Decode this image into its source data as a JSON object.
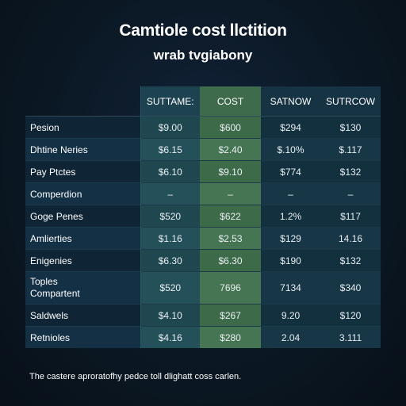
{
  "title": "Camtiole cost llctition",
  "subtitle": "wrab tvgiabony",
  "table": {
    "headers": [
      "",
      "SUTTAME:",
      "COST",
      "SATNOW",
      "SUTRCOW"
    ],
    "rows": [
      {
        "label": "Pesion",
        "values": [
          "$9.00",
          "$600",
          "$294",
          "$130"
        ]
      },
      {
        "label": "Dhtine Neries",
        "values": [
          "$6.15",
          "$2.40",
          "$.10%",
          "$.117"
        ]
      },
      {
        "label": "Pay Ptctes",
        "values": [
          "$6.10",
          "$9.10",
          "$774",
          "$132"
        ]
      },
      {
        "label": "Comperdion",
        "values": [
          "–",
          "–",
          "–",
          "–"
        ]
      },
      {
        "label": "Goge Penes",
        "values": [
          "$520",
          "$622",
          "1.2%",
          "$117"
        ]
      },
      {
        "label": "Amlierties",
        "values": [
          "$1.16",
          "$2.53",
          "$129",
          "14.16"
        ]
      },
      {
        "label": "Enigenies",
        "values": [
          "$6.30",
          "$6.30",
          "$190",
          "$132"
        ]
      },
      {
        "label": "Toples\nCompartent",
        "values": [
          "$520",
          "7696",
          "7134",
          "$340"
        ]
      },
      {
        "label": "Saldwels",
        "values": [
          "$4.10",
          "$267",
          "9.20",
          "$120"
        ]
      },
      {
        "label": "Retnioles",
        "values": [
          "$4.16",
          "$280",
          "2.04",
          "3.111"
        ]
      }
    ]
  },
  "footnote": "The castere aproratofhy pedce toll dlighatt coss carlen."
}
